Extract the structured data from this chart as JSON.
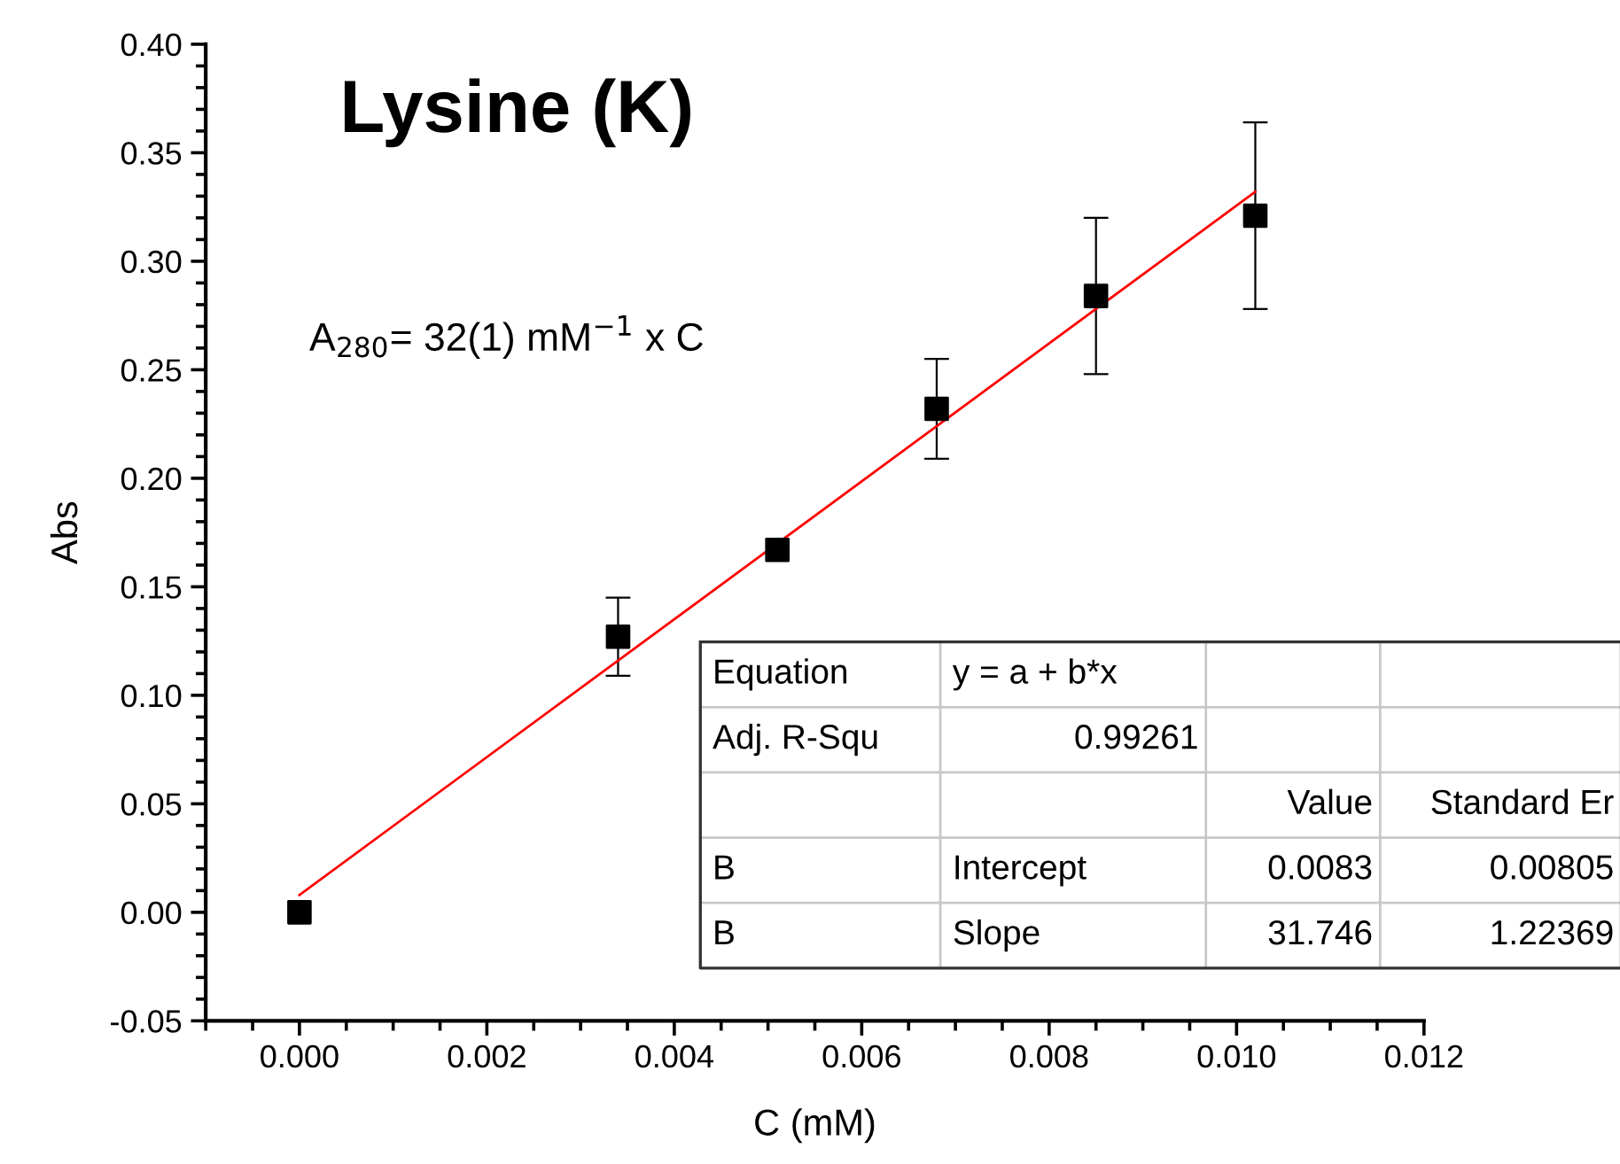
{
  "chart_data": {
    "type": "scatter",
    "title": "Lysine (K)",
    "xlabel": "C (mM)",
    "ylabel": "Abs",
    "x": [
      0.0,
      0.0034,
      0.0051,
      0.0068,
      0.0085,
      0.0102
    ],
    "series": [
      {
        "color": "#000000",
        "marker": "square",
        "values": [
          0.0,
          0.127,
          0.167,
          0.232,
          0.284,
          0.321
        ],
        "errors": [
          null,
          0.018,
          null,
          0.023,
          0.036,
          0.043
        ]
      },
      {
        "type": "line",
        "color": "#ff0000",
        "line_style": "solid",
        "x": [
          0.0,
          0.0102
        ],
        "values": [
          0.008,
          0.332
        ]
      }
    ],
    "annotations": [
      "A$_{280}$= 32(1) mM$^{−1}$ x C",
      "Equation",
      "y = a + b*x",
      "Adj. R-Squ",
      "0.99261",
      "Value",
      "Standard Er",
      "B",
      "Intercept",
      "0.0083",
      "0.00805",
      "B",
      "Slope",
      "31.746",
      "1.22369"
    ],
    "xlim": [
      -0.001,
      0.012
    ],
    "xticks": [
      {
        "value": 0.0,
        "label": "0.000"
      },
      {
        "value": 0.002,
        "label": "0.002"
      },
      {
        "value": 0.004,
        "label": "0.004"
      },
      {
        "value": 0.006,
        "label": "0.006"
      },
      {
        "value": 0.008,
        "label": "0.008"
      },
      {
        "value": 0.01,
        "label": "0.010"
      },
      {
        "value": 0.012,
        "label": "0.012"
      }
    ],
    "ylim": [
      -0.05,
      0.4
    ],
    "yticks": [
      {
        "value": -0.05,
        "label": "-0.05"
      },
      {
        "value": 0.0,
        "label": "0.00"
      },
      {
        "value": 0.05,
        "label": "0.05"
      },
      {
        "value": 0.1,
        "label": "0.10"
      },
      {
        "value": 0.15,
        "label": "0.15"
      },
      {
        "value": 0.2,
        "label": "0.20"
      },
      {
        "value": 0.25,
        "label": "0.25"
      },
      {
        "value": 0.3,
        "label": "0.30"
      },
      {
        "value": 0.35,
        "label": "0.35"
      },
      {
        "value": 0.4,
        "label": "0.40"
      }
    ],
    "grid": false
  }
}
